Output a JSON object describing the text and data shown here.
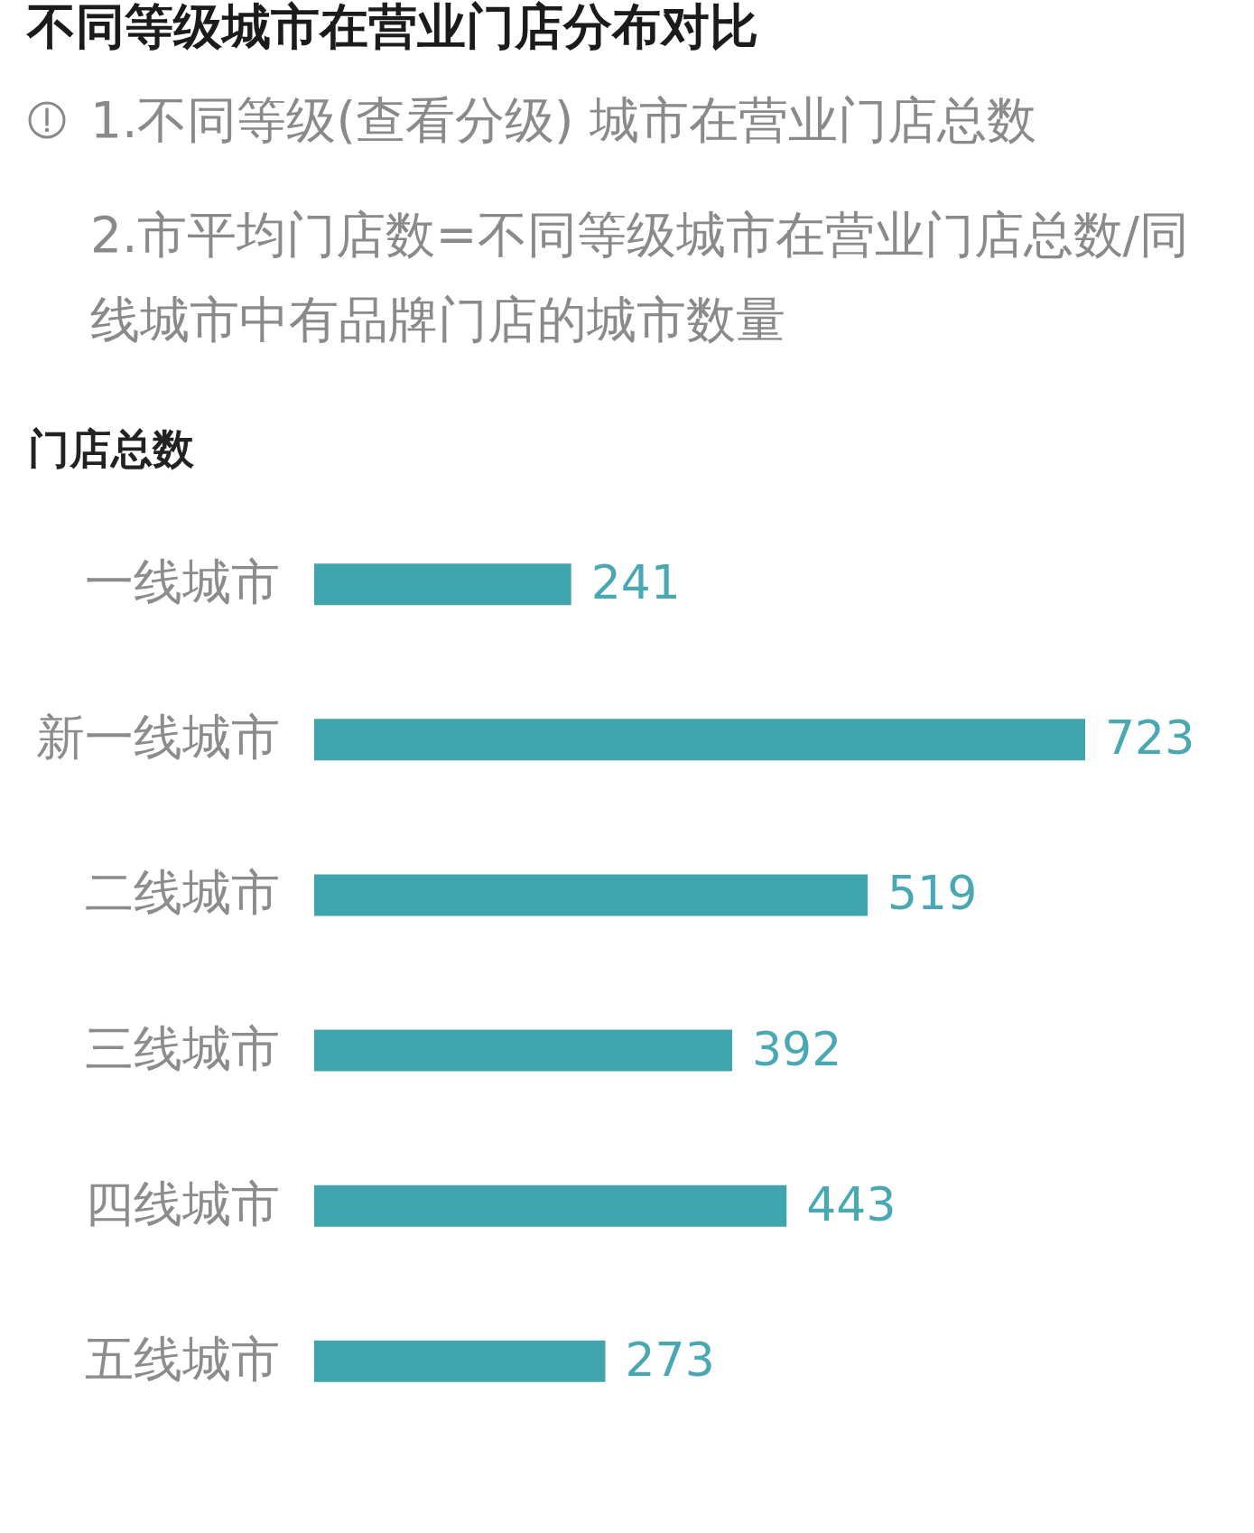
{
  "chart_data": {
    "type": "bar",
    "orientation": "horizontal",
    "title": "不同等级城市在营业门店分布对比",
    "annotations": [
      "1.不同等级(查看分级) 城市在营业门店总数",
      "2.市平均门店数=不同等级城市在营业门店总数/同线城市中有品牌门店的城市数量"
    ],
    "xlabel": "门店总数",
    "categories": [
      "一线城市",
      "新一线城市",
      "二线城市",
      "三线城市",
      "四线城市",
      "五线城市"
    ],
    "values": [
      241,
      723,
      519,
      392,
      443,
      273
    ],
    "color": "#40a4ad",
    "data_labels": true,
    "tick_labels": "y"
  }
}
